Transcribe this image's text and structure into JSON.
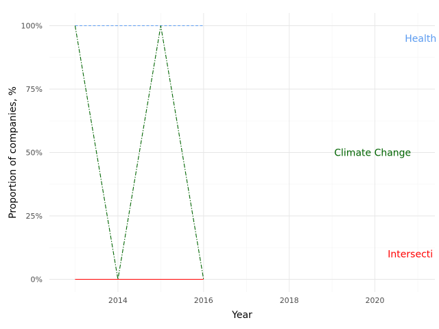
{
  "chart_data": {
    "type": "line",
    "title": "",
    "xlabel": "Year",
    "ylabel": "Proportion of companies, %",
    "xlim": [
      2012.4,
      2021.4
    ],
    "ylim": [
      -0.05,
      1.05
    ],
    "x_ticks": [
      2014,
      2016,
      2018,
      2020
    ],
    "x_tick_labels": [
      "2014",
      "2016",
      "2018",
      "2020"
    ],
    "y_ticks": [
      0,
      0.25,
      0.5,
      0.75,
      1
    ],
    "y_tick_labels": [
      "0%",
      "25%",
      "50%",
      "75%",
      "100%"
    ],
    "grid": true,
    "legend": "none",
    "series": [
      {
        "name": "Health",
        "color": "#5b9bf0",
        "linestyle": "dashed",
        "x": [
          2013,
          2014,
          2015,
          2016
        ],
        "y": [
          1,
          1,
          1,
          1
        ],
        "label_x": 2020.7,
        "label_y": 0.95
      },
      {
        "name": "Climate Change",
        "color": "#006400",
        "linestyle": "dashdot",
        "x": [
          2013,
          2014,
          2015,
          2016
        ],
        "y": [
          1,
          0,
          1,
          0
        ],
        "label_x": 2019.05,
        "label_y": 0.5
      },
      {
        "name": "Intersecti",
        "color": "#ff0000",
        "linestyle": "solid",
        "x": [
          2013,
          2014,
          2015,
          2016
        ],
        "y": [
          0,
          0,
          0,
          0
        ],
        "label_x": 2020.3,
        "label_y": 0.1
      }
    ]
  }
}
